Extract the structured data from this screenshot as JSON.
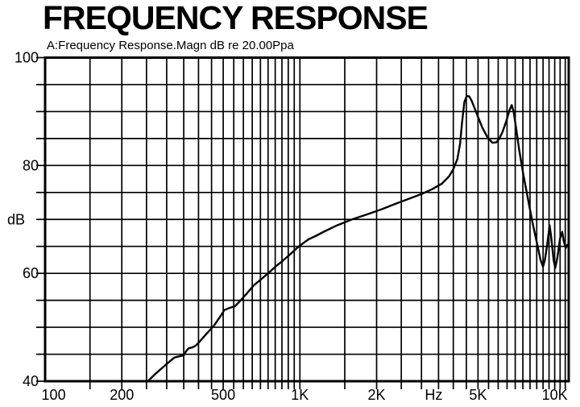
{
  "page": {
    "title": "FREQUENCY RESPONSE",
    "subtitle": "A:Frequency Response.Magn dB re 20.00Ppa"
  },
  "chart_data": {
    "type": "line",
    "title": "FREQUENCY RESPONSE",
    "subtitle": "A:Frequency Response.Magn dB re 20.00Ppa",
    "grid": true,
    "legend": "none",
    "colors": {
      "line": "#000000",
      "grid": "#000000",
      "frame": "#000000",
      "background": "#ffffff",
      "text": "#000000"
    },
    "x_axis": {
      "scale": "log",
      "unit": "Hz",
      "min": 100,
      "max": 11350,
      "tick_labels": [
        {
          "text": "100",
          "f": 108
        },
        {
          "text": "200",
          "f": 200
        },
        {
          "text": "500",
          "f": 500
        },
        {
          "text": "1K",
          "f": 1000
        },
        {
          "text": "2K",
          "f": 2000
        },
        {
          "text": "Hz",
          "f": 3350
        },
        {
          "text": "5K",
          "f": 5000
        },
        {
          "text": "10K",
          "f": 10000
        }
      ],
      "gridlines": [
        150,
        200,
        250,
        300,
        350,
        400,
        450,
        500,
        550,
        600,
        650,
        700,
        750,
        800,
        850,
        900,
        950,
        1000,
        1500,
        2000,
        2500,
        3000,
        3500,
        4000,
        4500,
        5000,
        5500,
        6000,
        6500,
        7000,
        7500,
        8000,
        8500,
        9000,
        9500,
        10000,
        10500,
        11000
      ]
    },
    "y_axis": {
      "unit": "dB",
      "min": 40,
      "max": 100,
      "grid_step": 5,
      "tick_labels": [
        {
          "text": "100",
          "dB": 100
        },
        {
          "text": "80",
          "dB": 80
        },
        {
          "text": "dB",
          "dB": 70,
          "is_unit_label": true
        },
        {
          "text": "60",
          "dB": 60
        },
        {
          "text": "40",
          "dB": 40
        }
      ]
    },
    "series": [
      {
        "name": "frequency-response-magnitude",
        "points": [
          [
            253,
            40.0
          ],
          [
            270,
            41.3
          ],
          [
            300,
            43.2
          ],
          [
            322,
            44.4
          ],
          [
            335,
            44.6
          ],
          [
            350,
            44.8
          ],
          [
            358,
            45.6
          ],
          [
            366,
            46.1
          ],
          [
            380,
            46.3
          ],
          [
            390,
            46.6
          ],
          [
            405,
            47.4
          ],
          [
            430,
            48.8
          ],
          [
            460,
            50.3
          ],
          [
            490,
            52.2
          ],
          [
            505,
            53.2
          ],
          [
            530,
            53.6
          ],
          [
            556,
            53.9
          ],
          [
            580,
            54.8
          ],
          [
            620,
            56.3
          ],
          [
            660,
            57.8
          ],
          [
            700,
            58.8
          ],
          [
            750,
            60.0
          ],
          [
            800,
            61.2
          ],
          [
            850,
            62.2
          ],
          [
            910,
            63.4
          ],
          [
            980,
            64.8
          ],
          [
            1030,
            65.6
          ],
          [
            1080,
            66.3
          ],
          [
            1150,
            66.9
          ],
          [
            1250,
            67.8
          ],
          [
            1400,
            68.9
          ],
          [
            1600,
            70.0
          ],
          [
            1850,
            71.0
          ],
          [
            2100,
            71.9
          ],
          [
            2400,
            73.0
          ],
          [
            2700,
            73.9
          ],
          [
            3000,
            74.7
          ],
          [
            3300,
            75.6
          ],
          [
            3600,
            76.6
          ],
          [
            3850,
            78.0
          ],
          [
            4000,
            79.3
          ],
          [
            4150,
            81.2
          ],
          [
            4250,
            84.0
          ],
          [
            4330,
            88.0
          ],
          [
            4420,
            91.8
          ],
          [
            4520,
            92.9
          ],
          [
            4620,
            92.8
          ],
          [
            4720,
            92.0
          ],
          [
            4850,
            90.6
          ],
          [
            5000,
            89.0
          ],
          [
            5200,
            87.0
          ],
          [
            5450,
            85.2
          ],
          [
            5700,
            84.2
          ],
          [
            5900,
            84.3
          ],
          [
            6050,
            84.9
          ],
          [
            6250,
            86.3
          ],
          [
            6450,
            88.2
          ],
          [
            6650,
            90.3
          ],
          [
            6780,
            91.2
          ],
          [
            6900,
            90.0
          ],
          [
            7050,
            87.0
          ],
          [
            7250,
            83.0
          ],
          [
            7500,
            78.8
          ],
          [
            7800,
            74.5
          ],
          [
            8150,
            69.8
          ],
          [
            8500,
            65.8
          ],
          [
            8800,
            62.5
          ],
          [
            9000,
            61.2
          ],
          [
            9150,
            62.5
          ],
          [
            9350,
            65.5
          ],
          [
            9550,
            68.9
          ],
          [
            9700,
            66.5
          ],
          [
            9900,
            62.5
          ],
          [
            10050,
            61.0
          ],
          [
            10250,
            63.0
          ],
          [
            10500,
            66.5
          ],
          [
            10700,
            67.7
          ],
          [
            10850,
            66.0
          ],
          [
            11050,
            64.7
          ],
          [
            11200,
            65.3
          ],
          [
            11350,
            64.9
          ]
        ]
      }
    ]
  }
}
